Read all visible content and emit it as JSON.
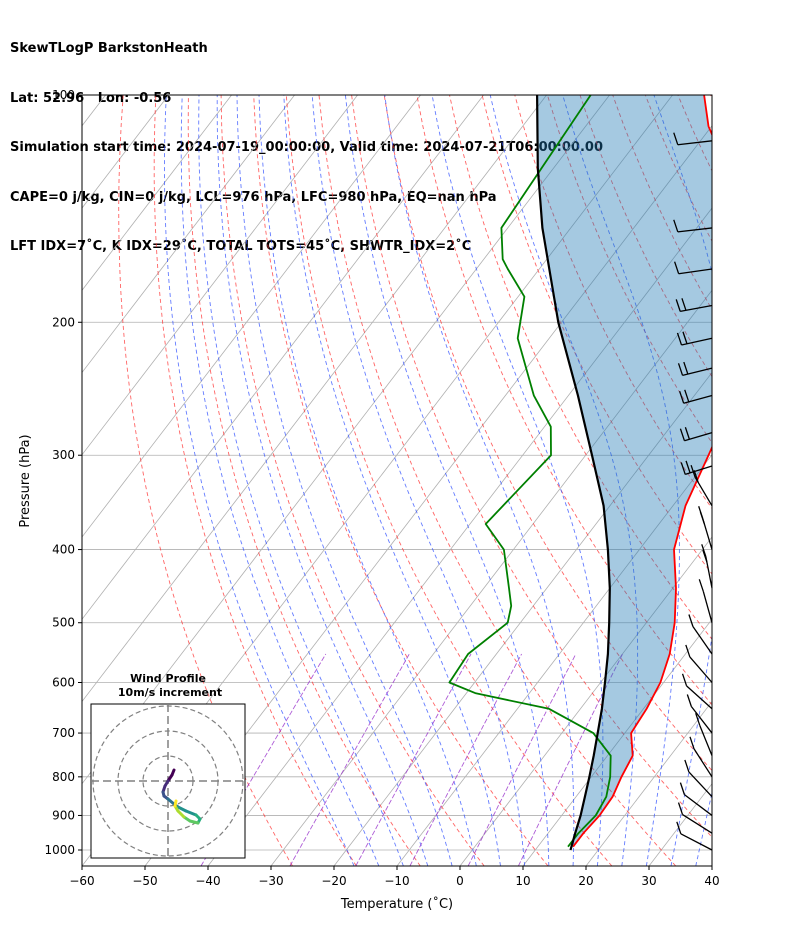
{
  "header": {
    "line1": "SkewTLogP BarkstonHeath",
    "line2": "Lat: 52.96   Lon: -0.56",
    "line3": "Simulation start time: 2024-07-19_00:00:00, Valid time: 2024-07-21T06:00:00.00",
    "line4": "CAPE=0 j/kg, CIN=0 j/kg, LCL=976 hPa, LFC=980 hPa, EQ=nan hPa",
    "line5": "LFT IDX=7˚C, K IDX=29˚C, TOTAL TOTS=45˚C, SHWTR_IDX=2˚C"
  },
  "chart_data": {
    "type": "line",
    "subtype": "skew-t log-p",
    "xlabel": "Temperature (˚C)",
    "ylabel": "Pressure (hPa)",
    "xlim": [
      -60,
      40
    ],
    "ylim": [
      1050,
      100
    ],
    "yscale": "log",
    "grid": true,
    "x_ticks": [
      "−60",
      "−50",
      "−40",
      "−30",
      "−20",
      "−10",
      "0",
      "10",
      "20",
      "30",
      "40"
    ],
    "y_ticks": [
      "100",
      "200",
      "300",
      "400",
      "500",
      "600",
      "700",
      "800",
      "900",
      "1000"
    ],
    "series": [
      {
        "name": "",
        "role": "temperature",
        "color": "#ff0000",
        "points": [
          [
            15.6,
            990
          ],
          [
            15.6,
            950
          ],
          [
            16.0,
            900
          ],
          [
            15.8,
            850
          ],
          [
            14.8,
            800
          ],
          [
            14.0,
            750
          ],
          [
            11.0,
            700
          ],
          [
            10.5,
            650
          ],
          [
            9.5,
            600
          ],
          [
            7.5,
            550
          ],
          [
            4.5,
            500
          ],
          [
            0.5,
            450
          ],
          [
            -4.5,
            400
          ],
          [
            -8.0,
            350
          ],
          [
            -10.5,
            300
          ],
          [
            -13.5,
            250
          ],
          [
            -16.5,
            225
          ],
          [
            -21.0,
            200
          ],
          [
            -27.0,
            175
          ],
          [
            -34.0,
            150
          ],
          [
            -42.5,
            125
          ],
          [
            -50.5,
            110
          ],
          [
            -55.0,
            100
          ]
        ]
      },
      {
        "name": "",
        "role": "dewpoint",
        "color": "#008000",
        "points": [
          [
            14.8,
            990
          ],
          [
            14.8,
            950
          ],
          [
            15.4,
            900
          ],
          [
            14.8,
            850
          ],
          [
            13.0,
            800
          ],
          [
            10.5,
            750
          ],
          [
            5.0,
            700
          ],
          [
            -5.0,
            650
          ],
          [
            -18.5,
            620
          ],
          [
            -24.0,
            600
          ],
          [
            -24.5,
            550
          ],
          [
            -22.0,
            500
          ],
          [
            -23.5,
            475
          ],
          [
            -26.0,
            450
          ],
          [
            -31.5,
            400
          ],
          [
            -37.5,
            370
          ],
          [
            -35.5,
            300
          ],
          [
            -39.0,
            275
          ],
          [
            -45.5,
            250
          ],
          [
            -55.0,
            210
          ],
          [
            -59.0,
            185
          ],
          [
            -65.0,
            170
          ],
          [
            -67.0,
            165
          ],
          [
            -71.0,
            150
          ],
          [
            -73.0,
            100
          ]
        ]
      },
      {
        "name": "",
        "role": "parcel",
        "color": "#000000",
        "points": [
          [
            15.6,
            1000
          ],
          [
            14.3,
            950
          ],
          [
            13.0,
            900
          ],
          [
            11.4,
            850
          ],
          [
            9.7,
            800
          ],
          [
            7.8,
            750
          ],
          [
            5.7,
            700
          ],
          [
            3.4,
            650
          ],
          [
            0.7,
            600
          ],
          [
            -2.3,
            550
          ],
          [
            -5.9,
            500
          ],
          [
            -10.0,
            450
          ],
          [
            -15.0,
            400
          ],
          [
            -21.0,
            350
          ],
          [
            -29.0,
            300
          ],
          [
            -38.5,
            250
          ],
          [
            -50.5,
            200
          ],
          [
            -57.0,
            175
          ],
          [
            -64.5,
            150
          ],
          [
            -72.5,
            125
          ],
          [
            -81.5,
            100
          ]
        ]
      }
    ],
    "wind_barbs_note": "wind barbs on right edge from 100 to 1000 hPa",
    "inset": {
      "title": "Wind Profile",
      "subtitle": "10m/s increment",
      "hodograph": [
        [
          0.6,
          -1.1
        ],
        [
          0.4,
          -0.6
        ],
        [
          0.0,
          0.0
        ],
        [
          -0.3,
          0.5
        ],
        [
          -0.5,
          1.1
        ],
        [
          -0.4,
          1.5
        ],
        [
          0.0,
          1.8
        ],
        [
          0.6,
          2.3
        ],
        [
          1.0,
          2.6
        ],
        [
          1.8,
          3.0
        ],
        [
          2.8,
          3.4
        ],
        [
          3.2,
          3.8
        ],
        [
          3.0,
          4.2
        ],
        [
          2.2,
          4.0
        ],
        [
          1.6,
          3.6
        ],
        [
          1.0,
          3.0
        ],
        [
          0.7,
          2.5
        ],
        [
          0.8,
          2.0
        ]
      ]
    }
  }
}
